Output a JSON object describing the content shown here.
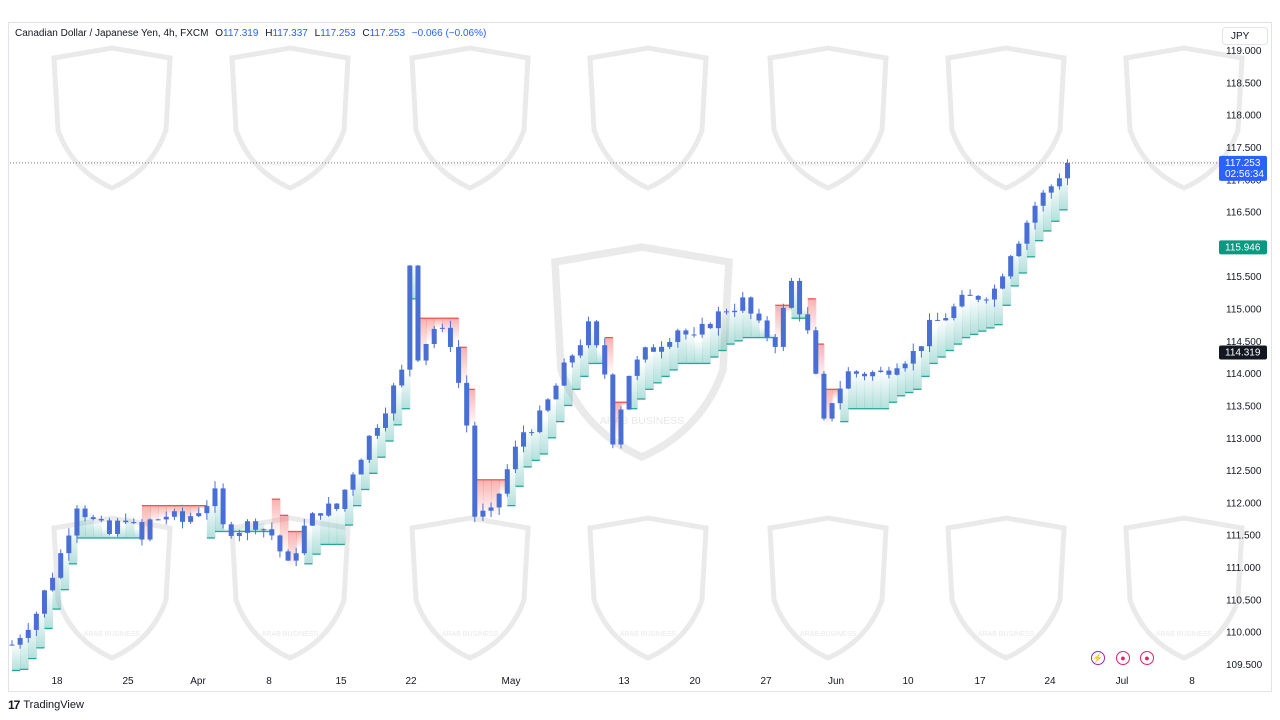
{
  "legend": {
    "symbol": "Canadian Dollar / Japanese Yen, 4h, FXCM",
    "open_label": "O",
    "open": "117.319",
    "high_label": "H",
    "high": "117.337",
    "low_label": "L",
    "low": "117.253",
    "close_label": "C",
    "close": "117.253",
    "change": "−0.066 (−0.06%)"
  },
  "currency_button": "JPY",
  "price_badges": {
    "last_price": "117.253",
    "countdown": "02:56:34",
    "stop_level": "115.946",
    "marker_level": "114.319"
  },
  "footer": {
    "logo_glyph": "17",
    "brand": "TradingView"
  },
  "watermark": {
    "text": "ARAB BUSINESS"
  },
  "colors": {
    "candle": "#4a6fd4",
    "up_band": "#26a69a",
    "down_band": "#ef5350",
    "last_price_badge": "#2962ff",
    "stop_badge": "#089981",
    "marker_badge": "#131722"
  },
  "chart_data": {
    "type": "candlestick",
    "y_axis": {
      "min": 109.5,
      "max": 119.0,
      "position": "right",
      "ticks": [
        "119.000",
        "118.500",
        "118.000",
        "117.500",
        "117.000",
        "116.500",
        "116.000",
        "115.500",
        "115.000",
        "114.500",
        "114.000",
        "113.500",
        "113.000",
        "112.500",
        "112.000",
        "111.500",
        "111.000",
        "110.500",
        "110.000",
        "109.500"
      ]
    },
    "x_axis": {
      "ticks": [
        "18",
        "25",
        "Apr",
        "8",
        "15",
        "22",
        "May",
        "13",
        "20",
        "27",
        "Jun",
        "10",
        "17",
        "24",
        "Jul",
        "8"
      ]
    },
    "close_series": [
      [
        0,
        109.8
      ],
      [
        3,
        110.3
      ],
      [
        6,
        111.2
      ],
      [
        8,
        112.0
      ],
      [
        10,
        111.7
      ],
      [
        12,
        111.5
      ],
      [
        14,
        111.8
      ],
      [
        16,
        111.4
      ],
      [
        17,
        111.7
      ],
      [
        19,
        111.8
      ],
      [
        21,
        111.7
      ],
      [
        23,
        111.9
      ],
      [
        25,
        112.1
      ],
      [
        26,
        111.6
      ],
      [
        28,
        111.6
      ],
      [
        30,
        111.7
      ],
      [
        32,
        111.5
      ],
      [
        34,
        111.0
      ],
      [
        36,
        111.6
      ],
      [
        38,
        111.9
      ],
      [
        40,
        111.9
      ],
      [
        42,
        112.5
      ],
      [
        44,
        113.0
      ],
      [
        46,
        113.5
      ],
      [
        48,
        114.0
      ],
      [
        49,
        115.7
      ],
      [
        50,
        114.3
      ],
      [
        52,
        114.7
      ],
      [
        54,
        114.5
      ],
      [
        56,
        113.2
      ],
      [
        57,
        111.8
      ],
      [
        59,
        111.8
      ],
      [
        61,
        112.5
      ],
      [
        63,
        113.1
      ],
      [
        65,
        113.3
      ],
      [
        67,
        113.8
      ],
      [
        69,
        114.3
      ],
      [
        71,
        114.7
      ],
      [
        73,
        114.0
      ],
      [
        74,
        113.0
      ],
      [
        76,
        114.0
      ],
      [
        78,
        114.3
      ],
      [
        80,
        114.5
      ],
      [
        82,
        114.7
      ],
      [
        84,
        114.5
      ],
      [
        86,
        114.8
      ],
      [
        88,
        115.0
      ],
      [
        90,
        115.1
      ],
      [
        92,
        114.7
      ],
      [
        94,
        114.5
      ],
      [
        96,
        115.4
      ],
      [
        98,
        114.6
      ],
      [
        100,
        113.2
      ],
      [
        101,
        113.6
      ],
      [
        103,
        114.0
      ],
      [
        105,
        114.0
      ],
      [
        107,
        114.0
      ],
      [
        109,
        114.2
      ],
      [
        111,
        114.3
      ],
      [
        113,
        114.7
      ],
      [
        115,
        114.9
      ],
      [
        117,
        115.1
      ],
      [
        119,
        115.2
      ],
      [
        121,
        115.3
      ],
      [
        123,
        115.9
      ],
      [
        124,
        116.1
      ],
      [
        126,
        116.6
      ],
      [
        128,
        116.9
      ],
      [
        130,
        117.253
      ]
    ],
    "last_close": 117.253,
    "stop_level": 115.946,
    "marker_level": 114.319
  }
}
